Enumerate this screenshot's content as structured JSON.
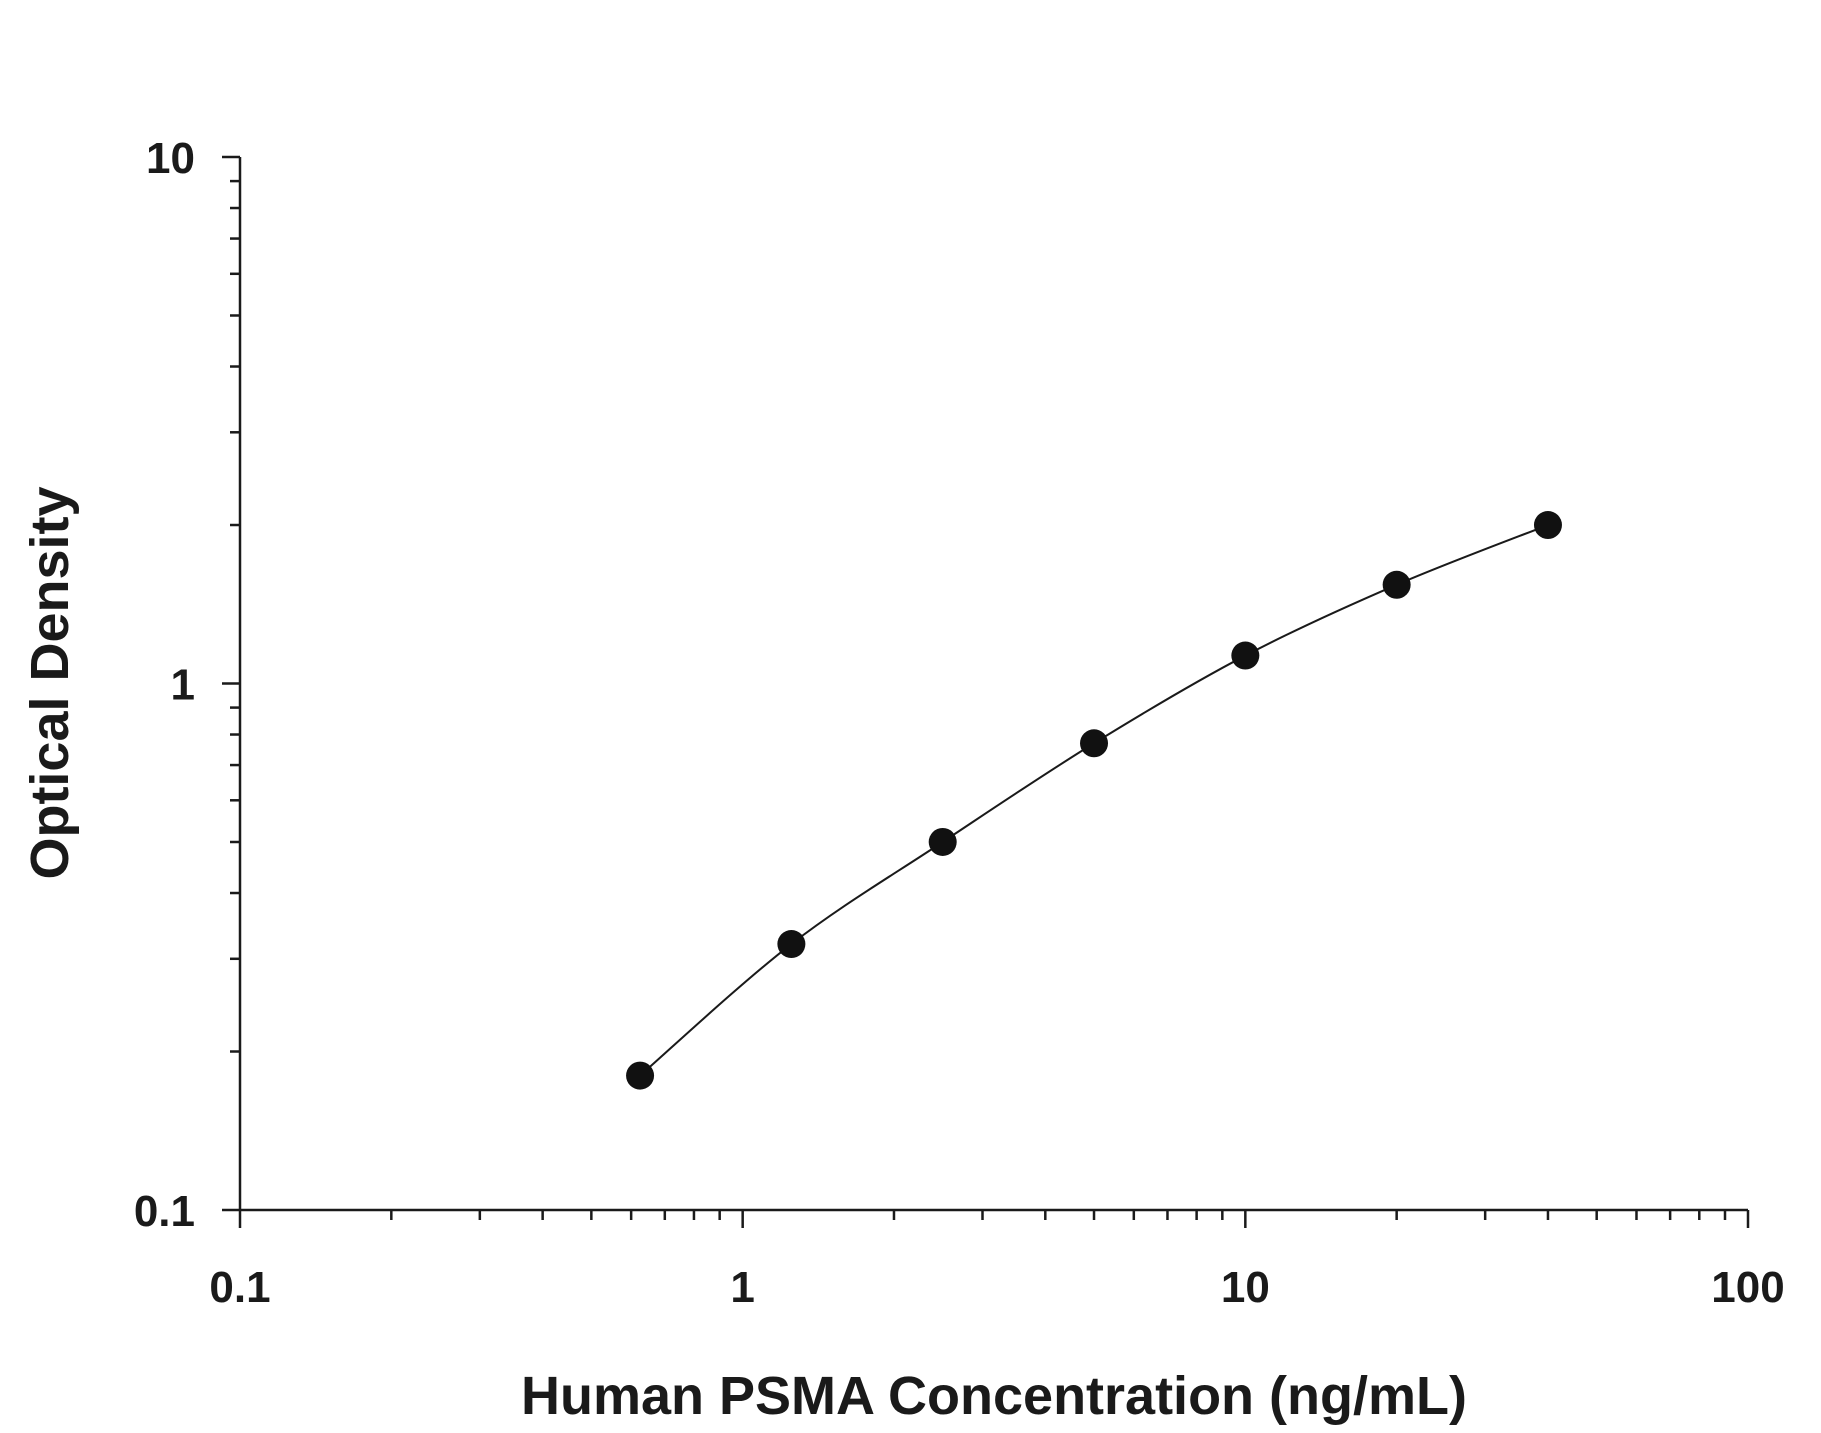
{
  "chart_data": {
    "type": "scatter",
    "xlabel": "Human PSMA Concentration (ng/mL)",
    "ylabel": "Optical Density",
    "x_scale": "log",
    "y_scale": "log",
    "xlim": [
      0.1,
      100
    ],
    "ylim": [
      0.1,
      10
    ],
    "x_ticks": [
      "0.1",
      "1",
      "10",
      "100"
    ],
    "y_ticks": [
      "0.1",
      "1",
      "10"
    ],
    "grid": false,
    "series": [
      {
        "x": [
          0.625,
          1.25,
          2.5,
          5,
          10,
          20,
          40
        ],
        "y": [
          0.18,
          0.32,
          0.5,
          0.77,
          1.13,
          1.54,
          2.0
        ]
      }
    ],
    "fit_curve": true,
    "colors": {
      "marker": "#111111",
      "line": "#1a1a1a"
    }
  }
}
